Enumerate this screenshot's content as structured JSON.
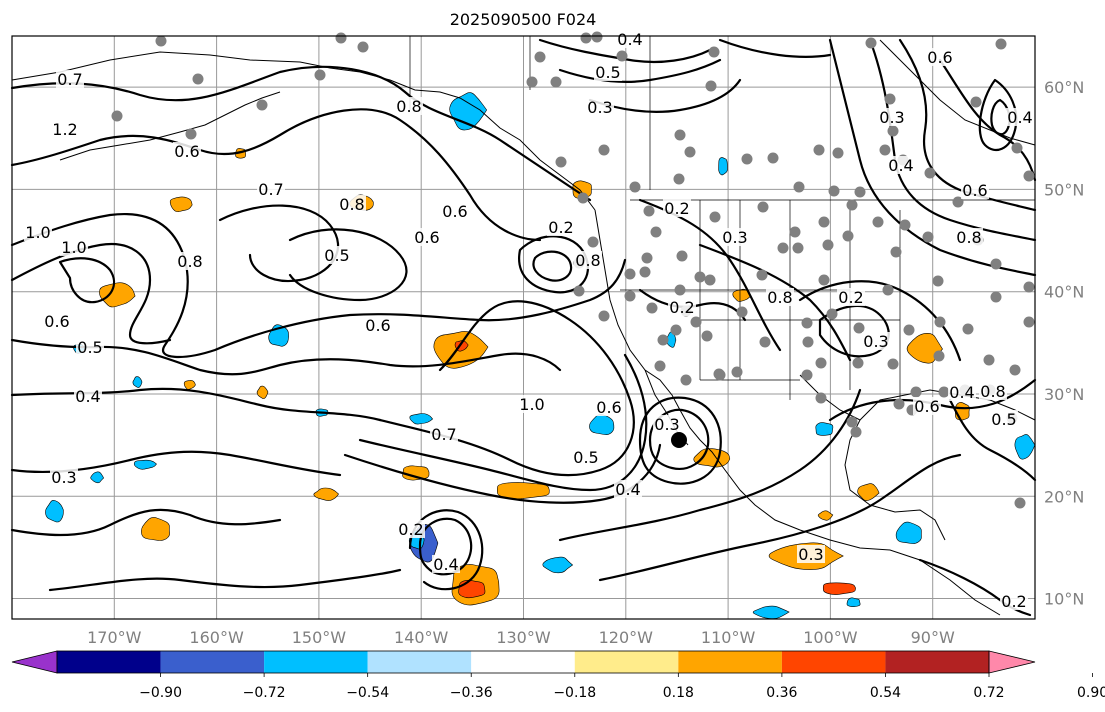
{
  "map": {
    "title": "2025090500 F024",
    "lat_labels": [
      "60°N",
      "50°N",
      "40°N",
      "30°N",
      "20°N",
      "10°N"
    ],
    "lon_labels": [
      "170°W",
      "160°W",
      "150°W",
      "140°W",
      "130°W",
      "120°W",
      "110°W",
      "100°W",
      "90°W"
    ],
    "lon_range": [
      -180,
      -80
    ],
    "lat_range": [
      8,
      65
    ],
    "contour_color": "#000000",
    "station_dot_color": "#808080",
    "contour_labels": [
      "0.7",
      "1.2",
      "0.6",
      "1.0",
      "1.0",
      "0.8",
      "0.6",
      "0.5",
      "0.4",
      "0.3",
      "0.8",
      "0.8",
      "0.6",
      "0.7",
      "0.6",
      "0.5",
      "0.6",
      "0.7",
      "1.0",
      "0.5",
      "0.4",
      "0.3",
      "0.6",
      "0.5",
      "0.4",
      "0.3",
      "0.2",
      "0.2",
      "0.3",
      "0.2",
      "0.3",
      "0.8",
      "0.6",
      "0.4",
      "0.8",
      "0.5",
      "0.3",
      "0.2",
      "0.4",
      "0.2",
      "0.2",
      "0.8",
      "0.4",
      "0.3",
      "0.6",
      "0.6",
      "0.4",
      "0.8"
    ]
  },
  "colorbar": {
    "tick_labels": [
      "−0.90",
      "−0.72",
      "−0.54",
      "−0.36",
      "−0.18",
      "0.18",
      "0.36",
      "0.54",
      "0.72",
      "0.90"
    ],
    "colors": [
      "#9932cc",
      "#00008b",
      "#3a5fcd",
      "#00bfff",
      "#b0e2ff",
      "#ffffff",
      "#ffec8b",
      "#ffa500",
      "#ff4500",
      "#b22222",
      "#ff88aa"
    ]
  }
}
